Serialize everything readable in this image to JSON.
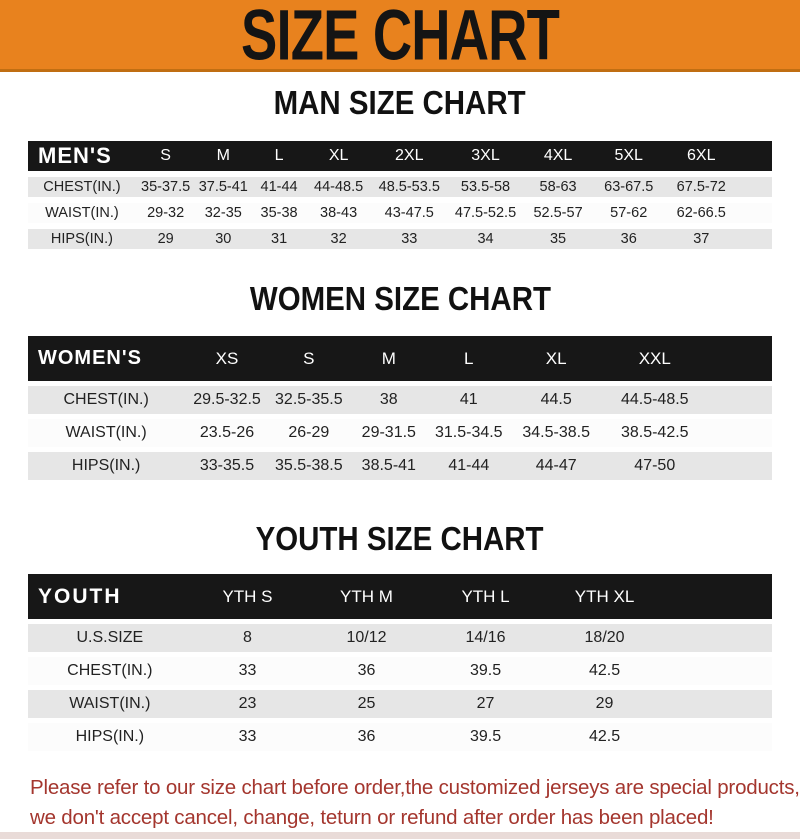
{
  "banner": {
    "title": "SIZE CHART",
    "bg_color": "#E8821E",
    "text_color": "#141414"
  },
  "sections": [
    {
      "heading": "MAN SIZE CHART",
      "table": {
        "title": "MEN'S",
        "columns": [
          "S",
          "M",
          "L",
          "XL",
          "2XL",
          "3XL",
          "4XL",
          "5XL",
          "6XL"
        ],
        "rows": [
          {
            "label": "CHEST(IN.)",
            "values": [
              "35-37.5",
              "37.5-41",
              "41-44",
              "44-48.5",
              "48.5-53.5",
              "53.5-58",
              "58-63",
              "63-67.5",
              "67.5-72"
            ]
          },
          {
            "label": "WAIST(IN.)",
            "values": [
              "29-32",
              "32-35",
              "35-38",
              "38-43",
              "43-47.5",
              "47.5-52.5",
              "52.5-57",
              "57-62",
              "62-66.5"
            ]
          },
          {
            "label": "HIPS(IN.)",
            "values": [
              "29",
              "30",
              "31",
              "32",
              "33",
              "34",
              "35",
              "36",
              "37"
            ]
          }
        ]
      }
    },
    {
      "heading": "WOMEN SIZE CHART",
      "table": {
        "title": "WOMEN'S",
        "columns": [
          "XS",
          "S",
          "M",
          "L",
          "XL",
          "XXL"
        ],
        "rows": [
          {
            "label": "CHEST(IN.)",
            "values": [
              "29.5-32.5",
              "32.5-35.5",
              "38",
              "41",
              "44.5",
              "44.5-48.5"
            ]
          },
          {
            "label": "WAIST(IN.)",
            "values": [
              "23.5-26",
              "26-29",
              "29-31.5",
              "31.5-34.5",
              "34.5-38.5",
              "38.5-42.5"
            ]
          },
          {
            "label": "HIPS(IN.)",
            "values": [
              "33-35.5",
              "35.5-38.5",
              "38.5-41",
              "41-44",
              "44-47",
              "47-50"
            ]
          }
        ]
      }
    },
    {
      "heading": "YOUTH SIZE CHART",
      "table": {
        "title": "YOUTH",
        "columns": [
          "YTH S",
          "YTH M",
          "YTH L",
          "YTH XL"
        ],
        "rows": [
          {
            "label": "U.S.SIZE",
            "values": [
              "8",
              "10/12",
              "14/16",
              "18/20"
            ]
          },
          {
            "label": "CHEST(IN.)",
            "values": [
              "33",
              "36",
              "39.5",
              "42.5"
            ]
          },
          {
            "label": "WAIST(IN.)",
            "values": [
              "23",
              "25",
              "27",
              "29"
            ]
          },
          {
            "label": "HIPS(IN.)",
            "values": [
              "33",
              "36",
              "39.5",
              "42.5"
            ]
          }
        ]
      }
    }
  ],
  "footer": {
    "lines": [
      "Please refer to our size chart before order,the customized jerseys are special products,",
      "we don't accept cancel, change, teturn or refund after order has been placed!"
    ],
    "text_color": "#A4362E"
  }
}
